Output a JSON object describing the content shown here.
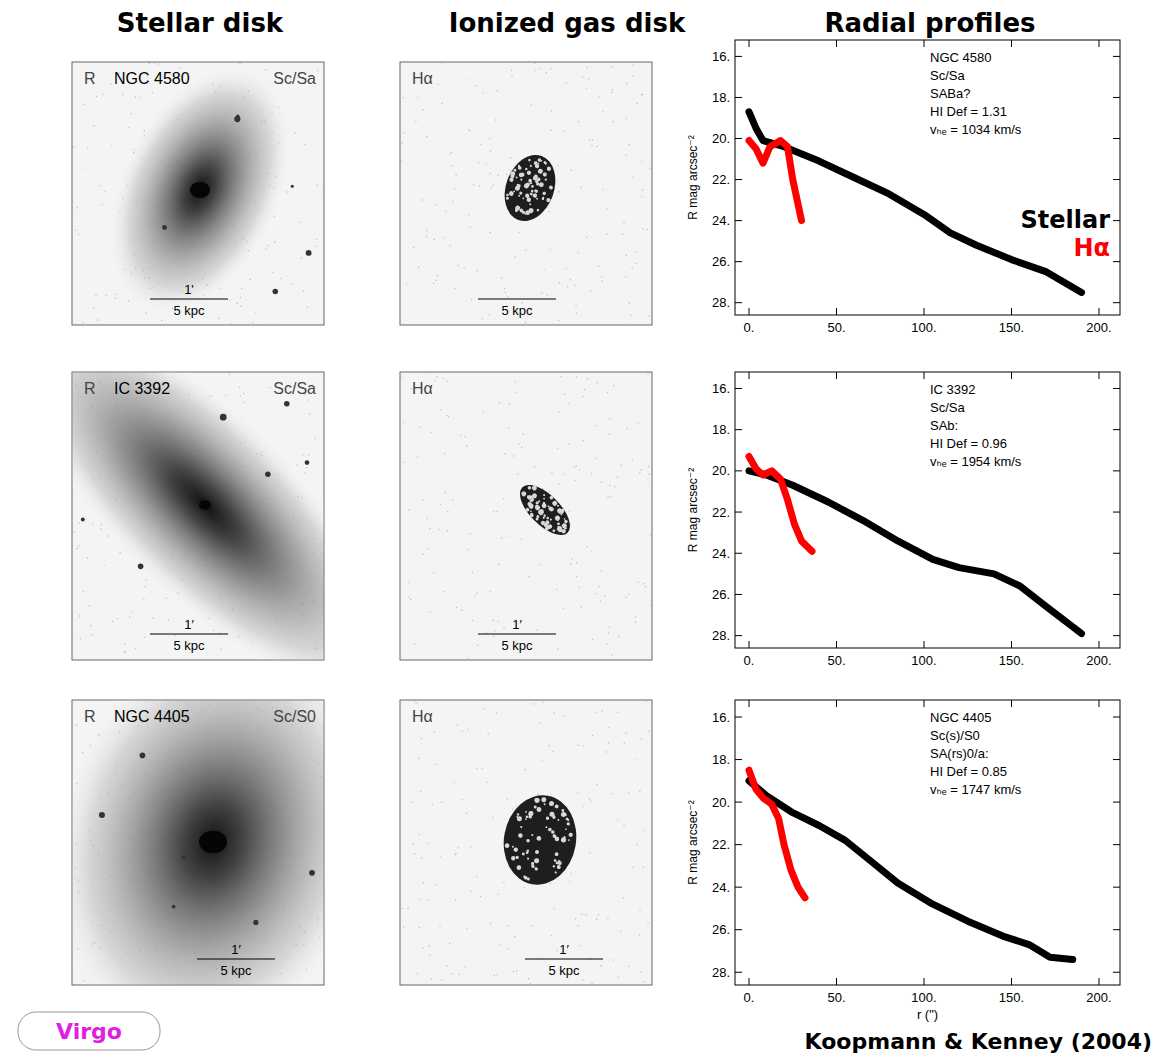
{
  "headers": [
    "Stellar disk",
    "Ionized gas disk",
    "Radial profiles"
  ],
  "rows": [
    {
      "stellar": {
        "band": "R",
        "name": "NGC 4580",
        "type": "Sc/Sa",
        "scale_arcmin": "1'",
        "scale_kpc": "5 kpc"
      },
      "halpha": {
        "band": "Hα",
        "scale_kpc": "5 kpc"
      }
    },
    {
      "stellar": {
        "band": "R",
        "name": "IC 3392",
        "type": "Sc/Sa",
        "scale_arcmin": "1′",
        "scale_kpc": "5 kpc"
      },
      "halpha": {
        "band": "Hα",
        "scale_arcmin": "1′",
        "scale_kpc": "5 kpc"
      }
    },
    {
      "stellar": {
        "band": "R",
        "name": "NGC 4405",
        "type": "Sc/S0",
        "scale_arcmin": "1′",
        "scale_kpc": "5 kpc"
      },
      "halpha": {
        "band": "Hα",
        "scale_arcmin": "1′",
        "scale_kpc": "5 kpc"
      }
    }
  ],
  "chart_data": [
    {
      "type": "line",
      "y_label": "R mag arcsec⁻²",
      "annotations": [
        "NGC 4580",
        "Sc/Sa",
        "SABa?",
        "HI Def =  1.31",
        "vₕₑ = 1034 km/s"
      ],
      "xlim": [
        -8,
        212
      ],
      "ylim": [
        28.6,
        15.2
      ],
      "xticks": [
        {
          "value": 0,
          "label": "0."
        },
        {
          "value": 50,
          "label": "50."
        },
        {
          "value": 100,
          "label": "100."
        },
        {
          "value": 150,
          "label": "150."
        },
        {
          "value": 200,
          "label": "200."
        }
      ],
      "yticks": [
        {
          "value": 16,
          "label": "16."
        },
        {
          "value": 18,
          "label": "18."
        },
        {
          "value": 20,
          "label": "20."
        },
        {
          "value": 22,
          "label": "22."
        },
        {
          "value": 24,
          "label": "24."
        },
        {
          "value": 26,
          "label": "26."
        },
        {
          "value": 28,
          "label": "28."
        }
      ],
      "legend": "right",
      "series": [
        {
          "name": "Stellar",
          "color": "#000000",
          "line_style": "solid",
          "x": [
            0,
            4,
            8,
            20,
            40,
            60,
            80,
            100,
            115,
            130,
            150,
            170,
            190
          ],
          "values": [
            18.7,
            19.5,
            20.1,
            20.4,
            21.1,
            21.9,
            22.7,
            23.7,
            24.6,
            25.2,
            25.9,
            26.5,
            27.5
          ]
        },
        {
          "name": "Hα",
          "color": "#ff0000",
          "line_style": "solid",
          "x": [
            0,
            4,
            8,
            12,
            18,
            22,
            25,
            30
          ],
          "values": [
            20.1,
            20.5,
            21.2,
            20.4,
            20.1,
            20.4,
            22.0,
            24.0
          ]
        }
      ]
    },
    {
      "type": "line",
      "y_label": "R mag arcsec⁻²",
      "annotations": [
        "IC 3392",
        "Sc/Sa",
        "SAb:",
        "HI Def =  0.96",
        "vₕₑ = 1954 km/s"
      ],
      "xlim": [
        -8,
        212
      ],
      "ylim": [
        28.6,
        15.2
      ],
      "xticks": [
        {
          "value": 0,
          "label": "0."
        },
        {
          "value": 50,
          "label": "50."
        },
        {
          "value": 100,
          "label": "100."
        },
        {
          "value": 150,
          "label": "150."
        },
        {
          "value": 200,
          "label": "200."
        }
      ],
      "yticks": [
        {
          "value": 16,
          "label": "16."
        },
        {
          "value": 18,
          "label": "18."
        },
        {
          "value": 20,
          "label": "20."
        },
        {
          "value": 22,
          "label": "22."
        },
        {
          "value": 24,
          "label": "24."
        },
        {
          "value": 26,
          "label": "26."
        },
        {
          "value": 28,
          "label": "28."
        }
      ],
      "series": [
        {
          "color": "#000000",
          "line_style": "solid",
          "x": [
            0,
            10,
            25,
            45,
            65,
            85,
            105,
            120,
            140,
            155,
            170,
            190
          ],
          "values": [
            20.0,
            20.2,
            20.7,
            21.5,
            22.4,
            23.4,
            24.3,
            24.7,
            25.0,
            25.6,
            26.6,
            27.9
          ]
        },
        {
          "color": "#ff0000",
          "line_style": "solid",
          "x": [
            0,
            4,
            8,
            13,
            18,
            22,
            26,
            30,
            36
          ],
          "values": [
            19.3,
            19.9,
            20.2,
            20.0,
            20.4,
            21.4,
            22.6,
            23.4,
            23.9
          ]
        }
      ]
    },
    {
      "type": "line",
      "y_label": "R mag arcsec⁻²",
      "x_label": "r (\")",
      "annotations": [
        "NGC 4405",
        "Sc(s)/S0",
        "SA(rs)0/a:",
        "HI Def =  0.85",
        "vₕₑ = 1747 km/s"
      ],
      "xlim": [
        -8,
        212
      ],
      "ylim": [
        28.6,
        15.2
      ],
      "xticks": [
        {
          "value": 0,
          "label": "0."
        },
        {
          "value": 50,
          "label": "50."
        },
        {
          "value": 100,
          "label": "100."
        },
        {
          "value": 150,
          "label": "150."
        },
        {
          "value": 200,
          "label": "200."
        }
      ],
      "yticks": [
        {
          "value": 16,
          "label": "16."
        },
        {
          "value": 18,
          "label": "18."
        },
        {
          "value": 20,
          "label": "20."
        },
        {
          "value": 22,
          "label": "22."
        },
        {
          "value": 24,
          "label": "24."
        },
        {
          "value": 26,
          "label": "26."
        },
        {
          "value": 28,
          "label": "28."
        }
      ],
      "series": [
        {
          "color": "#000000",
          "line_style": "solid",
          "x": [
            0,
            10,
            25,
            40,
            55,
            70,
            85,
            105,
            125,
            145,
            160,
            172,
            185
          ],
          "values": [
            19.0,
            19.7,
            20.5,
            21.1,
            21.8,
            22.8,
            23.8,
            24.8,
            25.6,
            26.3,
            26.7,
            27.3,
            27.4
          ]
        },
        {
          "color": "#ff0000",
          "line_style": "solid",
          "x": [
            0,
            4,
            8,
            13,
            17,
            20,
            24,
            28,
            32
          ],
          "values": [
            18.5,
            19.4,
            19.8,
            20.1,
            20.8,
            22.0,
            23.2,
            24.0,
            24.5
          ]
        }
      ]
    }
  ],
  "footer": {
    "cluster": "Virgo",
    "credit": "Koopmann & Kenney (2004)"
  }
}
